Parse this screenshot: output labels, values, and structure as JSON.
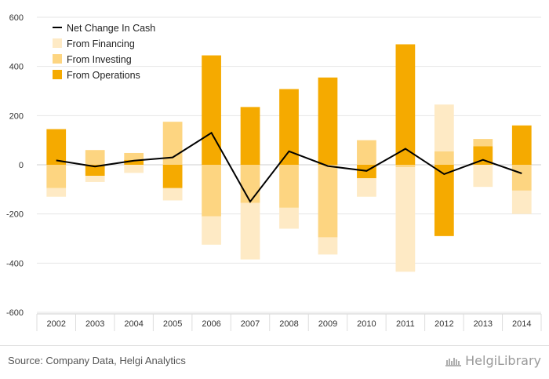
{
  "chart_data": {
    "type": "bar",
    "stacked": true,
    "categories": [
      "2002",
      "2003",
      "2004",
      "2005",
      "2006",
      "2007",
      "2008",
      "2009",
      "2010",
      "2011",
      "2012",
      "2013",
      "2014"
    ],
    "series": [
      {
        "name": "From Operations",
        "kind": "bar",
        "color": "#f5aa00",
        "values": [
          145,
          -45,
          20,
          -95,
          445,
          235,
          308,
          355,
          -55,
          490,
          -290,
          75,
          160
        ]
      },
      {
        "name": "From Investing",
        "kind": "bar",
        "color": "#fdd581",
        "values": [
          -95,
          60,
          28,
          175,
          -210,
          -155,
          -175,
          -295,
          100,
          -10,
          55,
          30,
          -105
        ]
      },
      {
        "name": "From Financing",
        "kind": "bar",
        "color": "#feeac5",
        "values": [
          -35,
          -25,
          -33,
          -50,
          -115,
          -230,
          -85,
          -70,
          -75,
          -425,
          190,
          -90,
          -95
        ]
      },
      {
        "name": "Net Change In Cash",
        "kind": "line",
        "color": "#000000",
        "values": [
          18,
          -7,
          17,
          30,
          130,
          -150,
          55,
          -5,
          -25,
          65,
          -38,
          20,
          -35
        ]
      }
    ],
    "legend_order": [
      "Net Change In Cash",
      "From Financing",
      "From Investing",
      "From Operations"
    ],
    "legend_position": "top-left",
    "ylim": [
      -600,
      600
    ],
    "yticks": [
      600,
      400,
      200,
      0,
      -200,
      -400,
      -600
    ],
    "grid": "horizontal",
    "title": "",
    "xlabel": "",
    "ylabel": ""
  },
  "footer": {
    "source": "Source: Company Data, Helgi Analytics",
    "brand": "HelgiLibrary"
  }
}
